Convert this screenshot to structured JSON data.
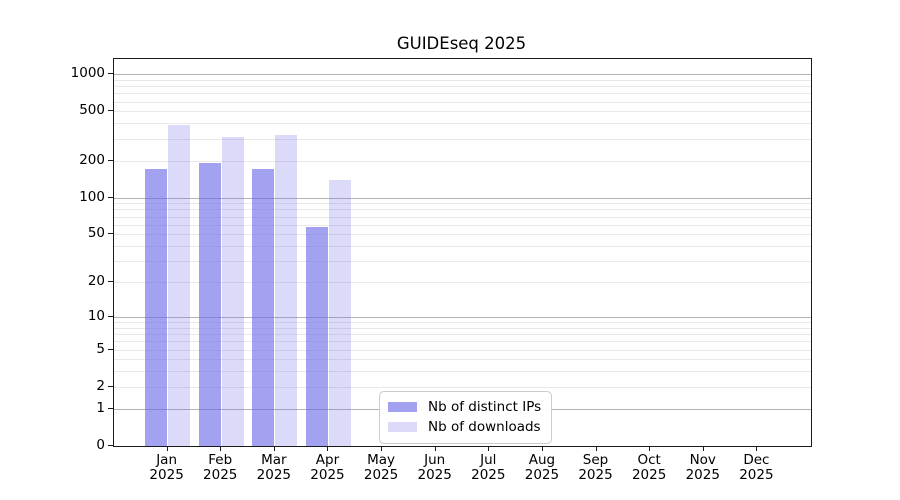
{
  "title": "GUIDEseq 2025",
  "chart_data": {
    "type": "bar",
    "title": "GUIDEseq 2025",
    "categories": [
      "Jan",
      "Feb",
      "Mar",
      "Apr",
      "May",
      "Jun",
      "Jul",
      "Aug",
      "Sep",
      "Oct",
      "Nov",
      "Dec"
    ],
    "year_label": "2025",
    "series": [
      {
        "name": "Nb of distinct IPs",
        "apparent_color": "#a4a4f2",
        "fill": "rgba(105,105,232,0.62)",
        "values": [
          170,
          191,
          172,
          58,
          null,
          null,
          null,
          null,
          null,
          null,
          null,
          null
        ]
      },
      {
        "name": "Nb of downloads",
        "apparent_color": "#dbdbf8",
        "fill": "rgba(105,105,232,0.24)",
        "values": [
          385,
          308,
          323,
          140,
          null,
          null,
          null,
          null,
          null,
          null,
          null,
          null
        ]
      }
    ],
    "y_ticks": [
      0,
      1,
      2,
      5,
      10,
      20,
      50,
      100,
      200,
      500,
      1000
    ],
    "y_minor_gridlines": [
      2,
      3,
      4,
      5,
      6,
      7,
      8,
      9,
      20,
      30,
      40,
      50,
      60,
      70,
      80,
      90,
      200,
      300,
      400,
      500,
      600,
      700,
      800,
      900
    ],
    "y_major_gridlines": [
      1,
      10,
      100,
      1000
    ],
    "y_scale": "symlog ln(1+v)",
    "ylim": [
      0,
      1320
    ],
    "xlabel": "",
    "ylabel": "",
    "grid": "horizontal only",
    "legend_position": "lower center inside plot",
    "axis_color": "#1a1a1a",
    "minor_grid_color": "#e9e9e9",
    "major_grid_color": "#b4b4b4"
  }
}
